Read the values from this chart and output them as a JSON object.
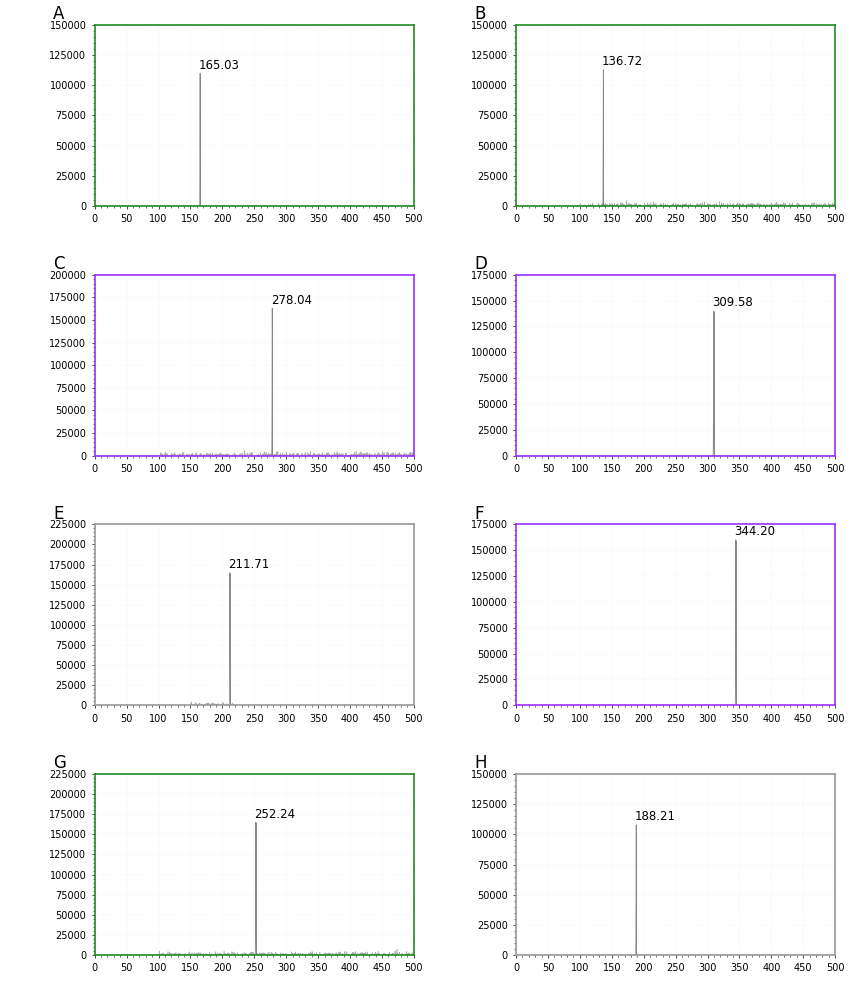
{
  "panels": [
    {
      "label": "A",
      "peak_x": 165.03,
      "peak_y": 110000,
      "peak_label": "165.03",
      "ylim": [
        0,
        150000
      ],
      "yticks": [
        0,
        25000,
        50000,
        75000,
        100000,
        125000,
        150000
      ],
      "xlim": [
        0,
        500
      ],
      "xticks": [
        0,
        50,
        100,
        150,
        200,
        250,
        300,
        350,
        400,
        450,
        500
      ],
      "border_color": "#228B22",
      "noise_pairs": []
    },
    {
      "label": "B",
      "peak_x": 136.72,
      "peak_y": 113000,
      "peak_label": "136.72",
      "ylim": [
        0,
        150000
      ],
      "yticks": [
        0,
        25000,
        50000,
        75000,
        100000,
        125000,
        150000
      ],
      "xlim": [
        0,
        500
      ],
      "xticks": [
        0,
        50,
        100,
        150,
        200,
        250,
        300,
        350,
        400,
        450,
        500
      ],
      "border_color": "#228B22",
      "noise_pairs": [
        [
          100,
          500
        ]
      ]
    },
    {
      "label": "C",
      "peak_x": 278.04,
      "peak_y": 163000,
      "peak_label": "278.04",
      "ylim": [
        0,
        200000
      ],
      "yticks": [
        0,
        25000,
        50000,
        75000,
        100000,
        125000,
        150000,
        175000,
        200000
      ],
      "xlim": [
        0,
        500
      ],
      "xticks": [
        0,
        50,
        100,
        150,
        200,
        250,
        300,
        350,
        400,
        450,
        500
      ],
      "border_color": "#9B30FF",
      "noise_pairs": [
        [
          100,
          500
        ]
      ]
    },
    {
      "label": "D",
      "peak_x": 309.58,
      "peak_y": 140000,
      "peak_label": "309.58",
      "ylim": [
        0,
        175000
      ],
      "yticks": [
        0,
        25000,
        50000,
        75000,
        100000,
        125000,
        150000,
        175000
      ],
      "xlim": [
        0,
        500
      ],
      "xticks": [
        0,
        50,
        100,
        150,
        200,
        250,
        300,
        350,
        400,
        450,
        500
      ],
      "border_color": "#9B30FF",
      "noise_pairs": []
    },
    {
      "label": "E",
      "peak_x": 211.71,
      "peak_y": 165000,
      "peak_label": "211.71",
      "ylim": [
        0,
        225000
      ],
      "yticks": [
        0,
        25000,
        50000,
        75000,
        100000,
        125000,
        150000,
        175000,
        200000,
        225000
      ],
      "xlim": [
        0,
        500
      ],
      "xticks": [
        0,
        50,
        100,
        150,
        200,
        250,
        300,
        350,
        400,
        450,
        500
      ],
      "border_color": "#999999",
      "noise_pairs": [
        [
          150,
          220
        ]
      ]
    },
    {
      "label": "F",
      "peak_x": 344.2,
      "peak_y": 160000,
      "peak_label": "344.20",
      "ylim": [
        0,
        175000
      ],
      "yticks": [
        0,
        25000,
        50000,
        75000,
        100000,
        125000,
        150000,
        175000
      ],
      "xlim": [
        0,
        500
      ],
      "xticks": [
        0,
        50,
        100,
        150,
        200,
        250,
        300,
        350,
        400,
        450,
        500
      ],
      "border_color": "#9B30FF",
      "noise_pairs": []
    },
    {
      "label": "G",
      "peak_x": 252.24,
      "peak_y": 165000,
      "peak_label": "252.24",
      "ylim": [
        0,
        225000
      ],
      "yticks": [
        0,
        25000,
        50000,
        75000,
        100000,
        125000,
        150000,
        175000,
        200000,
        225000
      ],
      "xlim": [
        0,
        500
      ],
      "xticks": [
        0,
        50,
        100,
        150,
        200,
        250,
        300,
        350,
        400,
        450,
        500
      ],
      "border_color": "#228B22",
      "noise_pairs": [
        [
          100,
          500
        ]
      ]
    },
    {
      "label": "H",
      "peak_x": 188.21,
      "peak_y": 108000,
      "peak_label": "188.21",
      "ylim": [
        0,
        150000
      ],
      "yticks": [
        0,
        25000,
        50000,
        75000,
        100000,
        125000,
        150000
      ],
      "xlim": [
        0,
        500
      ],
      "xticks": [
        0,
        50,
        100,
        150,
        200,
        250,
        300,
        350,
        400,
        450,
        500
      ],
      "border_color": "#999999",
      "noise_pairs": []
    }
  ],
  "bg_color": "#ffffff",
  "spike_color": "#888888",
  "noise_color": "#888888",
  "label_fontsize": 12,
  "tick_fontsize": 7,
  "annotation_fontsize": 8.5
}
